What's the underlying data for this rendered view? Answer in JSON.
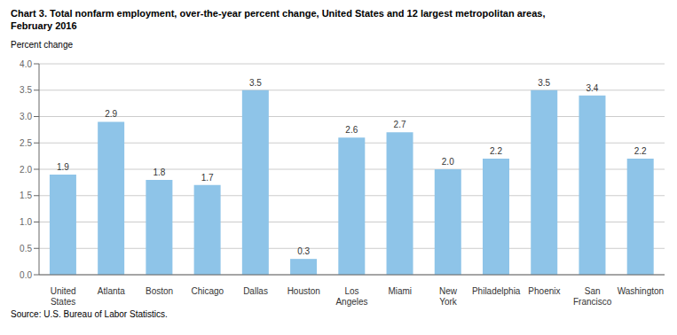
{
  "chart_data": {
    "type": "bar",
    "title": "Chart 3. Total nonfarm employment, over-the-year percent change, United States and 12 largest metropolitan areas,\nFebruary 2016",
    "ylabel": "Percent change",
    "annotations": [
      "Source: U.S. Bureau of Labor Statistics."
    ],
    "categories": [
      "United\nStates",
      "Atlanta",
      "Boston",
      "Chicago",
      "Dallas",
      "Houston",
      "Los\nAngeles",
      "Miami",
      "New\nYork",
      "Philadelphia",
      "Phoenix",
      "San\nFrancisco",
      "Washington"
    ],
    "values": [
      1.9,
      2.9,
      1.8,
      1.7,
      3.5,
      0.3,
      2.6,
      2.7,
      2.0,
      2.2,
      3.5,
      3.4,
      2.2
    ],
    "value_labels": [
      "1.9",
      "2.9",
      "1.8",
      "1.7",
      "3.5",
      "0.3",
      "2.6",
      "2.7",
      "2.0",
      "2.2",
      "3.5",
      "3.4",
      "2.2"
    ],
    "data_labels": true,
    "color": "#8ec4e8",
    "ylim": [
      0,
      4
    ],
    "yticks": [
      {
        "value": 0,
        "label": "0.0"
      },
      0.5,
      {
        "value": 1,
        "label": "1.0"
      },
      1.5,
      {
        "value": 2,
        "label": "2.0"
      },
      2.5,
      {
        "value": 3,
        "label": "3.0"
      },
      3.5,
      {
        "value": 4,
        "label": "4.0"
      }
    ],
    "grid": true
  }
}
